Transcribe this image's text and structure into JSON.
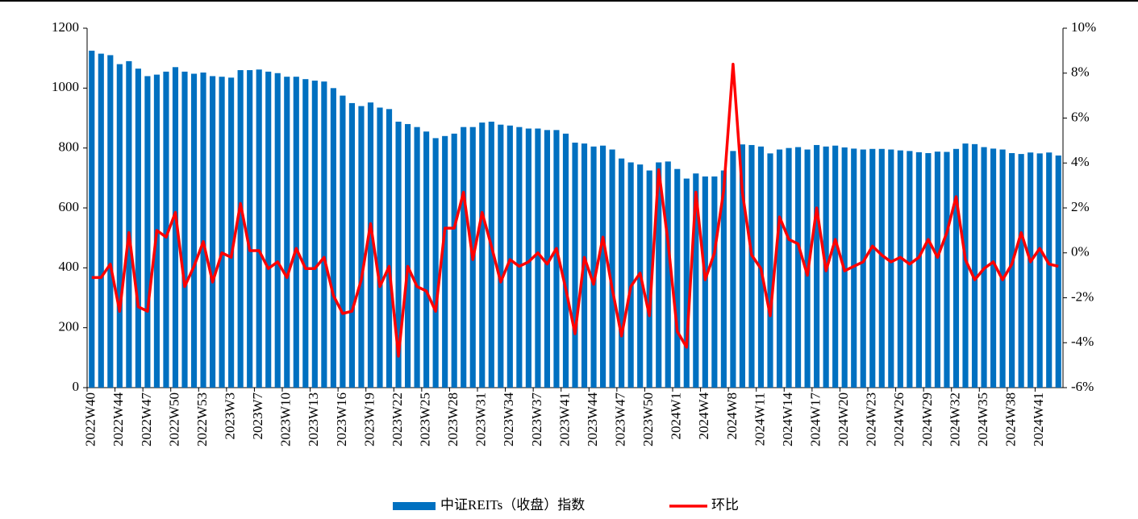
{
  "chart_data": {
    "type": "bar-line",
    "categories": [
      "2022W40",
      null,
      null,
      "2022W44",
      null,
      null,
      "2022W47",
      null,
      null,
      "2022W50",
      null,
      null,
      "2022W53",
      null,
      null,
      "2023W3",
      null,
      null,
      "2023W7",
      null,
      null,
      "2023W10",
      null,
      null,
      "2023W13",
      null,
      null,
      "2023W16",
      null,
      null,
      "2023W19",
      null,
      null,
      "2023W22",
      null,
      null,
      "2023W25",
      null,
      null,
      "2023W28",
      null,
      null,
      "2023W31",
      null,
      null,
      "2023W34",
      null,
      null,
      "2023W37",
      null,
      null,
      "2023W41",
      null,
      null,
      "2023W44",
      null,
      null,
      "2023W47",
      null,
      null,
      "2023W50",
      null,
      null,
      "2024W1",
      null,
      null,
      "2024W4",
      null,
      null,
      "2024W8",
      null,
      null,
      "2024W11",
      null,
      null,
      "2024W14",
      null,
      null,
      "2024W17",
      null,
      null,
      "2024W20",
      null,
      null,
      "2024W23",
      null,
      null,
      "2024W26",
      null,
      null,
      "2024W29",
      null,
      null,
      "2024W32",
      null,
      null,
      "2024W35",
      null,
      null,
      "2024W38",
      null,
      null,
      "2024W41",
      null,
      null
    ],
    "series": [
      {
        "name": "中证REITs（收盘）指数",
        "type": "bar",
        "color": "#0070c0",
        "values": [
          1125,
          1115,
          1110,
          1080,
          1090,
          1065,
          1040,
          1045,
          1055,
          1070,
          1055,
          1048,
          1052,
          1040,
          1038,
          1035,
          1060,
          1060,
          1062,
          1055,
          1050,
          1038,
          1038,
          1030,
          1025,
          1022,
          1000,
          975,
          950,
          940,
          952,
          935,
          930,
          888,
          880,
          870,
          855,
          833,
          840,
          848,
          870,
          870,
          885,
          888,
          878,
          875,
          870,
          865,
          865,
          860,
          860,
          848,
          818,
          815,
          805,
          808,
          795,
          765,
          752,
          745,
          725,
          752,
          755,
          730,
          698,
          715,
          705,
          705,
          725,
          790,
          812,
          810,
          805,
          782,
          795,
          800,
          803,
          795,
          810,
          805,
          808,
          802,
          798,
          795,
          797,
          797,
          795,
          792,
          790,
          786,
          783,
          788,
          787,
          797,
          815,
          813,
          803,
          798,
          795,
          783,
          780,
          785,
          782,
          785,
          775
        ]
      },
      {
        "name": "环比",
        "type": "line",
        "axis": "y2",
        "color": "#ff0000",
        "values": [
          -1.1,
          -1.1,
          -0.5,
          -2.6,
          0.9,
          -2.4,
          -2.6,
          1.0,
          0.7,
          1.8,
          -1.5,
          -0.6,
          0.5,
          -1.3,
          0.0,
          -0.2,
          2.2,
          0.1,
          0.1,
          -0.7,
          -0.4,
          -1.1,
          0.2,
          -0.7,
          -0.7,
          -0.2,
          -1.9,
          -2.7,
          -2.6,
          -1.2,
          1.3,
          -1.5,
          -0.6,
          -4.6,
          -0.6,
          -1.5,
          -1.7,
          -2.6,
          1.1,
          1.1,
          2.7,
          -0.3,
          1.8,
          0.3,
          -1.3,
          -0.3,
          -0.6,
          -0.4,
          0.0,
          -0.5,
          0.2,
          -1.6,
          -3.6,
          -0.2,
          -1.4,
          0.7,
          -1.6,
          -3.7,
          -1.5,
          -0.9,
          -2.8,
          3.7,
          0.5,
          -3.5,
          -4.2,
          2.7,
          -1.2,
          0.0,
          2.8,
          8.4,
          2.7,
          -0.1,
          -0.7,
          -2.8,
          1.6,
          0.6,
          0.4,
          -1.0,
          2.0,
          -0.8,
          0.6,
          -0.8,
          -0.6,
          -0.4,
          0.3,
          -0.1,
          -0.4,
          -0.2,
          -0.5,
          -0.2,
          0.6,
          -0.2,
          0.9,
          2.5,
          -0.3,
          -1.2,
          -0.7,
          -0.4,
          -1.2,
          -0.5,
          0.9,
          -0.4,
          0.2,
          -0.5,
          -0.6
        ]
      }
    ],
    "ylim": [
      0,
      1200
    ],
    "yticks": [
      0,
      200,
      400,
      600,
      800,
      1000,
      1200
    ],
    "y2lim": [
      -6,
      10
    ],
    "y2ticks": [
      {
        "value": -6,
        "label": "-6%"
      },
      {
        "value": -4,
        "label": "-4%"
      },
      {
        "value": -2,
        "label": "-2%"
      },
      {
        "value": 0,
        "label": "0%"
      },
      {
        "value": 2,
        "label": "2%"
      },
      {
        "value": 4,
        "label": "4%"
      },
      {
        "value": 6,
        "label": "6%"
      },
      {
        "value": 8,
        "label": "8%"
      },
      {
        "value": 10,
        "label": "10%"
      }
    ],
    "legend": "bottom"
  }
}
